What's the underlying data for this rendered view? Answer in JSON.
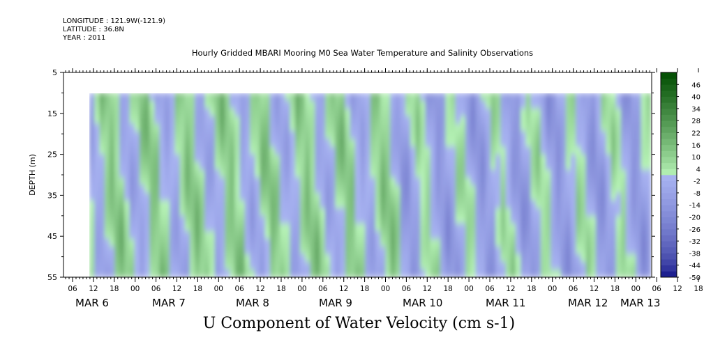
{
  "header": {
    "longitude": "LONGITUDE : 121.9W(-121.9)",
    "latitude": "LATITUDE : 36.8N",
    "year": "YEAR : 2011"
  },
  "chart_data": {
    "type": "heatmap",
    "title": "Hourly Gridded MBARI Mooring M0 Sea Water Temperature and Salinity Observations",
    "xlabel": "U Component of Water Velocity (cm s-1)",
    "ylabel": "DEPTH (m)",
    "y_ticks": [
      5,
      15,
      25,
      35,
      45,
      55
    ],
    "ylim": [
      5,
      55
    ],
    "y_data_range": [
      10,
      55
    ],
    "x_hour_ticks": [
      "06",
      "12",
      "18",
      "00",
      "06",
      "12",
      "18",
      "00",
      "06",
      "12",
      "18",
      "00",
      "06",
      "12",
      "18",
      "00",
      "06",
      "12",
      "18",
      "00",
      "06",
      "12",
      "18",
      "00",
      "06",
      "12",
      "18",
      "00",
      "06",
      "12",
      "18",
      "00"
    ],
    "x_day_labels": [
      "MAR 6",
      "MAR 7",
      "MAR 8",
      "MAR 9",
      "MAR 10",
      "MAR 11",
      "MAR 12",
      "MAR 13"
    ],
    "colorbar_ticks": [
      46,
      40,
      34,
      28,
      22,
      16,
      10,
      4,
      -2,
      -8,
      -14,
      -20,
      -26,
      -32,
      -38,
      -44,
      -50
    ],
    "colorbar_range": [
      -50,
      52
    ],
    "colorbar_step": 3,
    "color_low": "#00007a",
    "color_mid_low": "#a9b4f2",
    "color_mid_high": "#b8f4b8",
    "color_high": "#004d00"
  }
}
